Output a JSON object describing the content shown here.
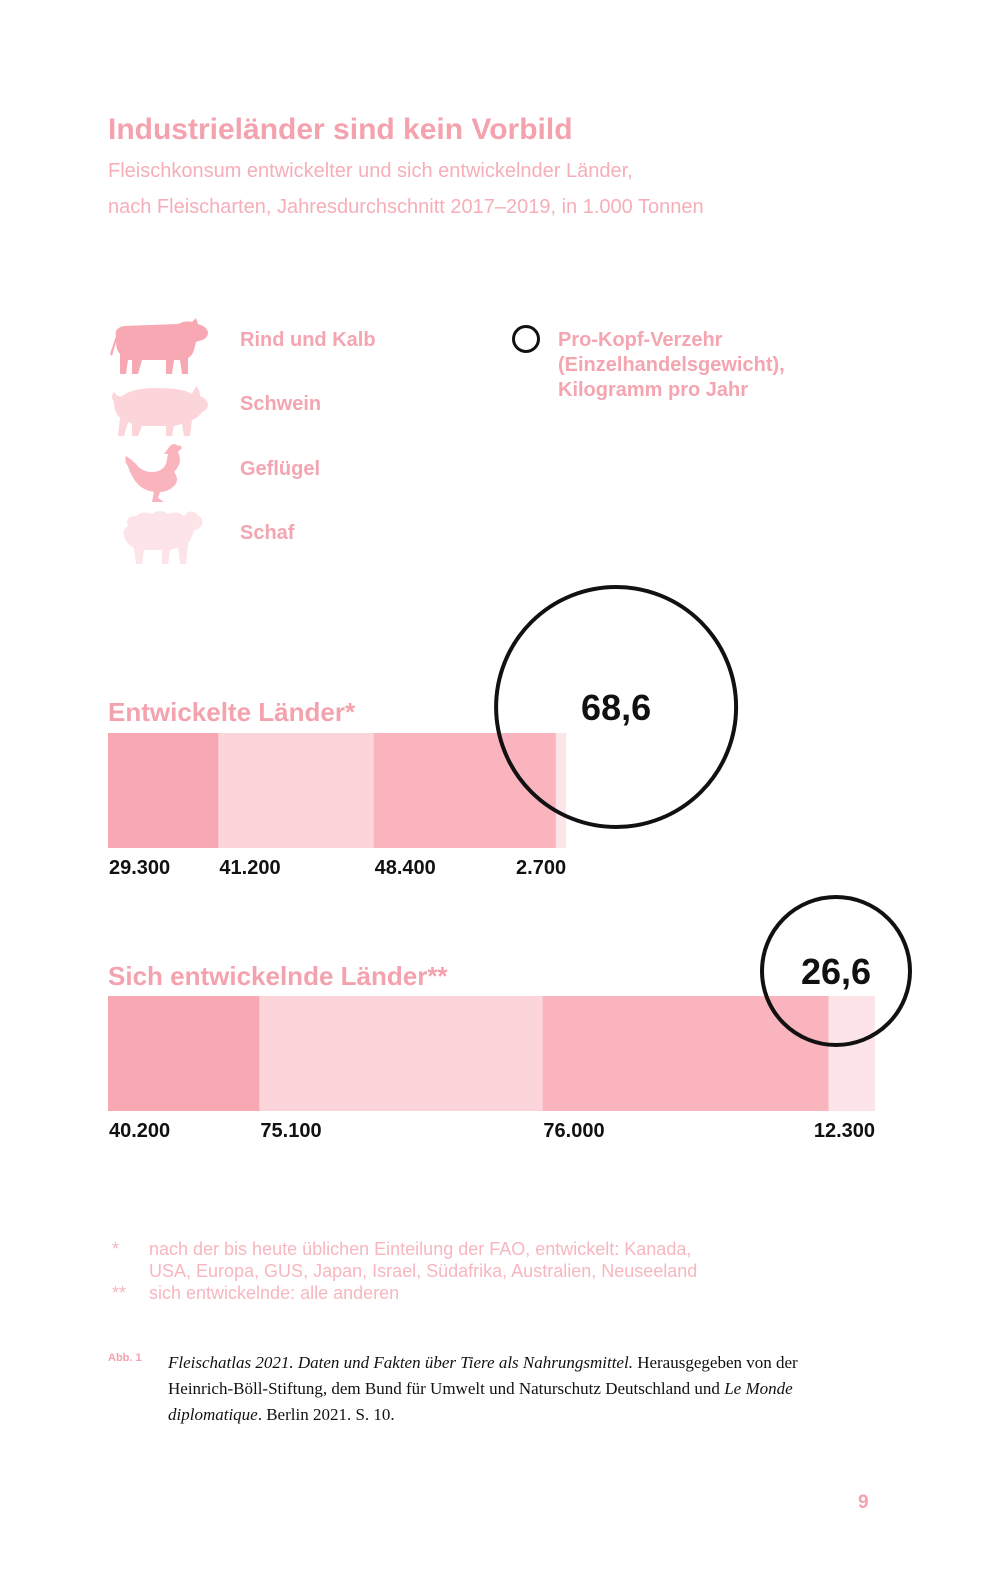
{
  "title": "Industrieländer sind kein Vorbild",
  "subtitle_line1": "Fleischkonsum entwickelter und sich entwickelnder Länder,",
  "subtitle_line2": "nach Fleischarten, Jahresdurchschnitt 2017–2019, in 1.000 Tonnen",
  "legend": {
    "items": [
      {
        "label": "Rind und Kalb",
        "icon": "cow-icon",
        "color": "#f7a8b3"
      },
      {
        "label": "Schwein",
        "icon": "pig-icon",
        "color": "#fcd5db"
      },
      {
        "label": "Geflügel",
        "icon": "chicken-icon",
        "color": "#fab4be"
      },
      {
        "label": "Schaf",
        "icon": "sheep-icon",
        "color": "#fde4e8"
      }
    ],
    "circle_label_line1": "Pro-Kopf-Verzehr",
    "circle_label_line2": "(Einzelhandelsgewicht),",
    "circle_label_line3": "Kilogramm pro Jahr"
  },
  "chart_data": {
    "type": "bar",
    "stacked": true,
    "categories": [
      "Rind und Kalb",
      "Schwein",
      "Geflügel",
      "Schaf"
    ],
    "groups": [
      {
        "name": "Entwickelte Länder*",
        "values": [
          29300,
          41200,
          48400,
          2700
        ],
        "value_labels": [
          "29.300",
          "41.200",
          "48.400",
          "2.700"
        ],
        "per_capita_label": "68,6",
        "per_capita": 68.6
      },
      {
        "name": "Sich entwickelnde Länder**",
        "values": [
          40200,
          75100,
          76000,
          12300
        ],
        "value_labels": [
          "40.200",
          "75.100",
          "76.000",
          "12.300"
        ],
        "per_capita_label": "26,6",
        "per_capita": 26.6
      }
    ]
  },
  "footnotes": {
    "star1": "*",
    "note1_line1": "nach der bis heute üblichen Einteilung der FAO, entwickelt: Kanada,",
    "note1_line2": "USA, Europa, GUS, Japan, Israel, Südafrika, Australien, Neuseeland",
    "star2": "**",
    "note2": "sich entwickelnde: alle anderen"
  },
  "citation": {
    "abb": "Abb. 1",
    "italic1": "Fleischatlas 2021. Daten und Fakten über Tiere als Nahrungsmittel.",
    "text1": " Herausgegeben von der Heinrich-Böll-Stiftung, dem Bund für Umwelt und Naturschutz Deutschland und ",
    "italic2": "Le Monde diplomatique",
    "text2": ". Berlin 2021. S. 10."
  },
  "page_number": "9"
}
